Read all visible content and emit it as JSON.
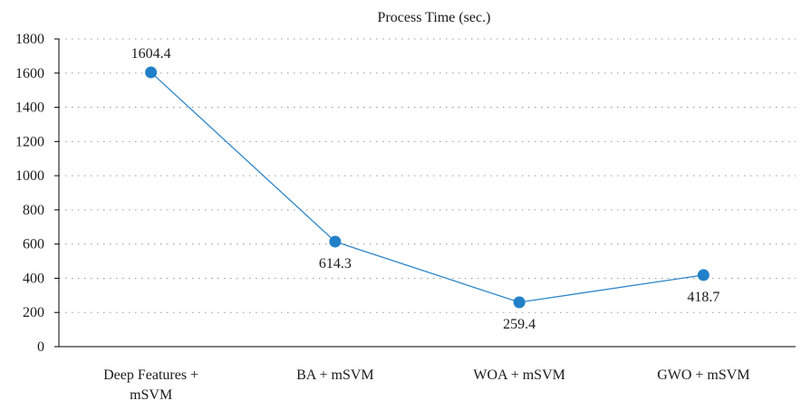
{
  "chart_data": {
    "type": "line",
    "title": "Process Time (sec.)",
    "xlabel": "",
    "ylabel": "",
    "categories": [
      [
        "Deep Features +",
        "mSVM"
      ],
      [
        "BA + mSVM"
      ],
      [
        "WOA + mSVM"
      ],
      [
        "GWO + mSVM"
      ]
    ],
    "series": [
      {
        "values": [
          1604.4,
          614.3,
          259.4,
          418.7
        ],
        "labels": [
          "1604.4",
          "614.3",
          "259.4",
          "418.7"
        ]
      }
    ],
    "ylim": [
      0,
      1800
    ],
    "yticks": [
      0,
      200,
      400,
      600,
      800,
      1000,
      1200,
      1400,
      1600,
      1800
    ],
    "grid": true,
    "colors": {
      "line": "#2e86c9",
      "marker": "#2180c8"
    }
  }
}
